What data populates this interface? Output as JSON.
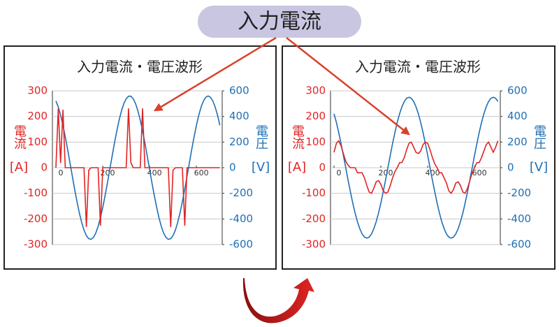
{
  "header": "入力電流",
  "chart_data": [
    {
      "type": "line",
      "title": "入力電流・電圧波形",
      "ylabel": "電流",
      "yunit": "[A]",
      "y2label": "電圧",
      "y2unit": "[V]",
      "x": [
        0,
        10,
        20,
        30,
        40,
        50,
        60,
        70,
        80,
        90,
        100,
        110,
        120,
        130,
        140,
        150,
        160,
        170,
        180,
        190,
        200,
        210,
        220,
        230,
        240,
        250,
        260,
        270,
        280,
        290,
        300,
        310,
        320,
        330,
        340,
        350,
        360,
        370,
        380,
        390,
        400,
        410,
        420,
        430,
        440,
        450,
        460,
        470,
        480,
        490,
        500,
        510,
        520,
        530,
        540,
        550,
        560,
        570,
        580,
        590,
        600,
        610,
        620,
        630,
        640,
        650,
        660,
        670,
        680,
        690,
        700
      ],
      "xlim": [
        -15,
        710
      ],
      "xticks": [
        0,
        200,
        400,
        600
      ],
      "ylim": [
        -300,
        300
      ],
      "yticks": [
        -300,
        -200,
        -100,
        0,
        100,
        200,
        300
      ],
      "y2lim": [
        -600,
        600
      ],
      "y2ticks": [
        -600,
        -400,
        -200,
        0,
        200,
        400,
        600
      ],
      "grid": true,
      "series": [
        {
          "color": "#e02424",
          "values": [
            0,
            230,
            20,
            225,
            0,
            0,
            0,
            0,
            0,
            0,
            0,
            0,
            0,
            -230,
            -10,
            0,
            0,
            0,
            0,
            -225,
            0,
            0,
            0,
            0,
            0,
            0,
            0,
            0,
            0,
            0,
            0,
            230,
            20,
            0,
            0,
            0,
            0,
            230,
            0,
            0,
            0,
            0,
            0,
            0,
            0,
            0,
            0,
            0,
            0,
            -230,
            -10,
            0,
            0,
            0,
            0,
            -225,
            0,
            0,
            0,
            0,
            0,
            0,
            0,
            0,
            0,
            0,
            0,
            0,
            0,
            0,
            0
          ]
        },
        {
          "color": "#1f6fb5",
          "axis": "y2",
          "values": [
            521,
            474,
            410,
            331,
            241,
            143,
            39,
            -66,
            -168,
            -265,
            -352,
            -427,
            -487,
            -530,
            -554,
            -559,
            -545,
            -511,
            -459,
            -391,
            -310,
            -217,
            -117,
            -13,
            91,
            193,
            288,
            372,
            444,
            500,
            538,
            558,
            558,
            538,
            500,
            444,
            372,
            288,
            193,
            91,
            -13,
            -117,
            -217,
            -310,
            -391,
            -459,
            -511,
            -545,
            -559,
            -554,
            -530,
            -487,
            -427,
            -352,
            -265,
            -168,
            -66,
            39,
            143,
            241,
            331,
            410,
            474,
            521,
            550,
            560,
            550,
            521,
            474,
            410,
            331
          ]
        }
      ]
    },
    {
      "type": "line",
      "title": "入力電流・電圧波形",
      "ylabel": "電流",
      "yunit": "[A]",
      "y2label": "電圧",
      "y2unit": "[V]",
      "x": [
        0,
        10,
        20,
        30,
        40,
        50,
        60,
        70,
        80,
        90,
        100,
        110,
        120,
        130,
        140,
        150,
        160,
        170,
        180,
        190,
        200,
        210,
        220,
        230,
        240,
        250,
        260,
        270,
        280,
        290,
        300,
        310,
        320,
        330,
        340,
        350,
        360,
        370,
        380,
        390,
        400,
        410,
        420,
        430,
        440,
        450,
        460,
        470,
        480,
        490,
        500,
        510,
        520,
        530,
        540,
        550,
        560,
        570,
        580,
        590,
        600,
        610,
        620,
        630,
        640,
        650,
        660,
        670,
        680,
        690,
        700
      ],
      "xlim": [
        -15,
        710
      ],
      "xticks": [
        0,
        200,
        400,
        600
      ],
      "ylim": [
        -300,
        300
      ],
      "yticks": [
        -300,
        -200,
        -100,
        0,
        100,
        200,
        300
      ],
      "y2lim": [
        -600,
        600
      ],
      "y2ticks": [
        -600,
        -400,
        -200,
        0,
        200,
        400,
        600
      ],
      "grid": true,
      "series": [
        {
          "color": "#e02424",
          "values": [
            60,
            95,
            105,
            85,
            55,
            25,
            10,
            0,
            0,
            0,
            -20,
            -20,
            -20,
            -40,
            -70,
            -95,
            -100,
            -80,
            -55,
            -50,
            -65,
            -90,
            -100,
            -95,
            -70,
            -40,
            -15,
            0,
            20,
            20,
            40,
            70,
            95,
            100,
            80,
            60,
            55,
            65,
            90,
            100,
            95,
            70,
            40,
            15,
            0,
            -20,
            -20,
            -40,
            -60,
            -90,
            -100,
            -85,
            -60,
            -55,
            -70,
            -95,
            -100,
            -80,
            -50,
            -20,
            0,
            20,
            20,
            40,
            65,
            90,
            100,
            80,
            60,
            80,
            105
          ]
        },
        {
          "color": "#1f6fb5",
          "axis": "y2",
          "values": [
            421,
            354,
            275,
            188,
            96,
            0,
            -96,
            -188,
            -275,
            -354,
            -421,
            -476,
            -517,
            -542,
            -550,
            -542,
            -517,
            -476,
            -421,
            -354,
            -275,
            -188,
            -96,
            0,
            96,
            188,
            275,
            354,
            421,
            476,
            517,
            542,
            550,
            542,
            517,
            476,
            421,
            354,
            275,
            188,
            96,
            0,
            -96,
            -188,
            -275,
            -354,
            -421,
            -476,
            -517,
            -542,
            -550,
            -542,
            -517,
            -476,
            -421,
            -354,
            -275,
            -188,
            -96,
            0,
            96,
            188,
            275,
            354,
            421,
            476,
            517,
            542,
            550,
            542,
            517
          ]
        }
      ]
    }
  ]
}
